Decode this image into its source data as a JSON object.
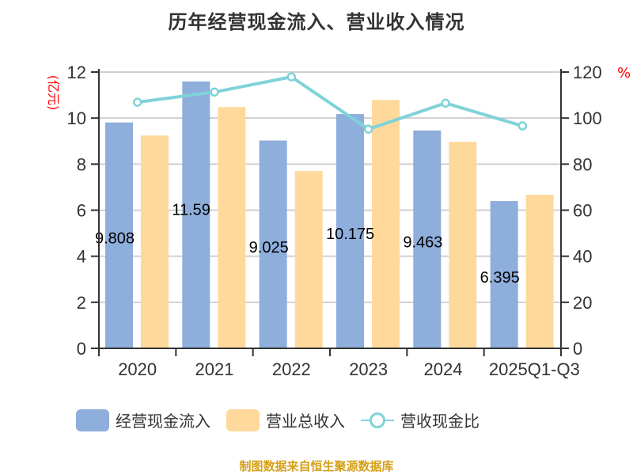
{
  "title": "历年经营现金流入、营业收入情况",
  "left_axis_unit": "(亿元)",
  "right_axis_unit": "%",
  "legend": [
    {
      "label": "经营现金流入",
      "color": "#8eaedb",
      "type": "bar"
    },
    {
      "label": "营业总收入",
      "color": "#fed99b",
      "type": "bar"
    },
    {
      "label": "营收现金比",
      "color": "#7fd3d8",
      "type": "line"
    }
  ],
  "source": "制图数据来自恒生聚源数据库",
  "colors": {
    "cash_inflow": "#8eaedb",
    "revenue": "#fed99b",
    "ratio": "#7fd3d8",
    "axis": "#333333",
    "grid": "#d0d0d0",
    "unit_label": "#ff0000"
  },
  "chart_data": {
    "type": "bar",
    "title": "历年经营现金流入、营业收入情况",
    "categories": [
      "2020",
      "2021",
      "2022",
      "2023",
      "2024",
      "2025Q1-Q3"
    ],
    "series": [
      {
        "name": "经营现金流入",
        "type": "bar",
        "axis": "left",
        "values": [
          9.808,
          11.59,
          9.025,
          10.175,
          9.463,
          6.395
        ],
        "data_labels": [
          "9.808",
          "11.59",
          "9.025",
          "10.175",
          "9.463",
          "6.395"
        ]
      },
      {
        "name": "营业总收入",
        "type": "bar",
        "axis": "left",
        "values": [
          9.24,
          10.48,
          7.7,
          10.79,
          8.97,
          6.67
        ]
      },
      {
        "name": "营收现金比",
        "type": "line",
        "axis": "right",
        "values": [
          106.9,
          111.3,
          117.9,
          95.2,
          106.5,
          96.6
        ]
      }
    ],
    "ylabel_left": "(亿元)",
    "ylabel_right": "%",
    "ylim_left": [
      0,
      12
    ],
    "ylim_right": [
      0,
      120
    ],
    "yticks_left": [
      0,
      2,
      4,
      6,
      8,
      10,
      12
    ],
    "yticks_right": [
      0,
      20,
      40,
      60,
      80,
      100,
      120
    ],
    "grid": true,
    "legend_position": "bottom"
  }
}
